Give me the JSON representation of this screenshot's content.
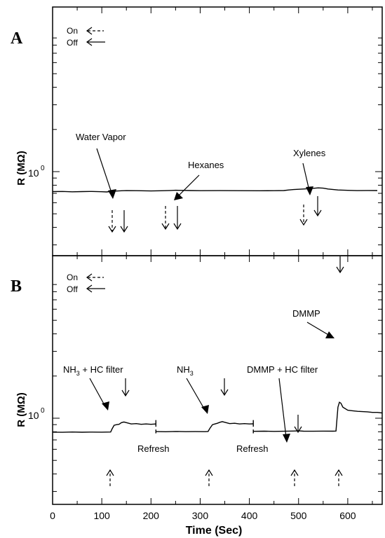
{
  "chart_data": [
    {
      "panel": "A",
      "type": "line",
      "ylabel": "R (MΩ)",
      "y_tick_label": "10",
      "y_tick_exponent": "0",
      "y_scale": "log",
      "legend": {
        "on": "On",
        "off": "Off",
        "placement": "top-left"
      },
      "xlim": [
        0,
        670
      ],
      "series": [
        {
          "x": [
            0,
            20,
            40,
            60,
            80,
            100,
            110,
            115,
            120,
            130,
            140,
            150,
            170,
            200,
            220,
            240,
            250,
            260,
            280,
            300,
            340,
            380,
            420,
            450,
            470,
            480,
            490,
            500,
            510,
            520,
            530,
            540,
            550,
            560,
            580,
            600,
            620,
            640,
            660
          ],
          "y": [
            0.72,
            0.722,
            0.718,
            0.72,
            0.722,
            0.719,
            0.716,
            0.72,
            0.724,
            0.727,
            0.73,
            0.732,
            0.731,
            0.728,
            0.73,
            0.734,
            0.736,
            0.735,
            0.733,
            0.731,
            0.732,
            0.731,
            0.73,
            0.731,
            0.733,
            0.74,
            0.745,
            0.748,
            0.752,
            0.756,
            0.76,
            0.766,
            0.762,
            0.752,
            0.74,
            0.735,
            0.732,
            0.734,
            0.733
          ]
        }
      ],
      "annotations": [
        {
          "text": "Water Vapor",
          "on_x": 122,
          "off_x": 147
        },
        {
          "text": "Hexanes",
          "on_x": 230,
          "off_x": 252
        },
        {
          "text": "Xylenes",
          "on_x": 512,
          "off_x": 538
        }
      ]
    },
    {
      "panel": "B",
      "type": "line",
      "ylabel": "R (MΩ)",
      "y_tick_label": "10",
      "y_tick_exponent": "0",
      "y_scale": "log",
      "legend": {
        "on": "On",
        "off": "Off",
        "placement": "top-left"
      },
      "xlabel": "Time (Sec)",
      "xlim": [
        0,
        670
      ],
      "xticks": [
        0,
        100,
        200,
        300,
        400,
        500,
        600
      ],
      "segments": [
        {
          "x": [
            0,
            20,
            40,
            60,
            80,
            100,
            118,
            121,
            125,
            130,
            135,
            140,
            145,
            150,
            160,
            170,
            180,
            190,
            200,
            210
          ],
          "y": [
            0.795,
            0.793,
            0.797,
            0.794,
            0.796,
            0.795,
            0.797,
            0.84,
            0.89,
            0.9,
            0.905,
            0.93,
            0.94,
            0.93,
            0.91,
            0.915,
            0.905,
            0.91,
            0.905,
            0.91
          ]
        },
        {
          "x": [
            210,
            230,
            250,
            270,
            290,
            310,
            316,
            320,
            325,
            330,
            335,
            340,
            345,
            350,
            360,
            370,
            380,
            390,
            400,
            408
          ],
          "y": [
            0.803,
            0.801,
            0.804,
            0.802,
            0.803,
            0.802,
            0.804,
            0.85,
            0.9,
            0.91,
            0.92,
            0.935,
            0.945,
            0.935,
            0.915,
            0.92,
            0.91,
            0.915,
            0.91,
            0.912
          ]
        },
        {
          "x": [
            408,
            430,
            450,
            470,
            490,
            500,
            510,
            530,
            550,
            570,
            576,
            580,
            583,
            586,
            590,
            600,
            610,
            620,
            640,
            650,
            660,
            670
          ],
          "y": [
            0.806,
            0.808,
            0.805,
            0.807,
            0.81,
            0.812,
            0.808,
            0.807,
            0.809,
            0.808,
            0.81,
            1.2,
            1.3,
            1.28,
            1.2,
            1.14,
            1.13,
            1.12,
            1.11,
            1.1,
            1.1,
            1.09
          ]
        }
      ],
      "annotations": [
        {
          "text": "NH",
          "sub": "3",
          "suffix": " + HC filter",
          "on_x": 120,
          "off_x": 146
        },
        {
          "text": "Refresh",
          "at_x": 210
        },
        {
          "text": "NH",
          "sub": "3",
          "suffix": "",
          "on_x": 318,
          "off_x": 348
        },
        {
          "text": "Refresh",
          "at_x": 408
        },
        {
          "text": "DMMP + HC filter",
          "on_x": 484,
          "off_x": 498
        },
        {
          "text": "DMMP",
          "on_x": 580,
          "off_x": 583
        }
      ]
    }
  ]
}
